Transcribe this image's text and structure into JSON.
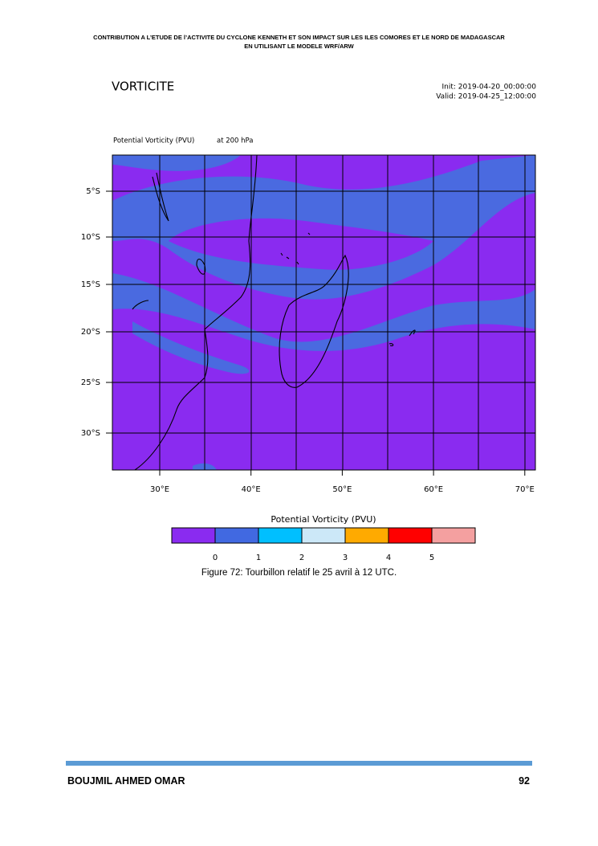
{
  "header": {
    "line1": "CONTRIBUTION A L’ETUDE DE l’ACTIVITE DU CYCLONE KENNETH ET SON IMPACT SUR LES ILES COMORES ET LE NORD DE MADAGASCAR",
    "line2": "EN UTILISANT LE MODELE WRF/ARW"
  },
  "figure": {
    "title": "VORTICITE",
    "init": "Init: 2019-04-20_00:00:00",
    "valid": "Valid: 2019-04-25_12:00:00",
    "field": "Potential Vorticity   (PVU)",
    "level": "at   200 hPa",
    "lat_labels": [
      "5°S",
      "10°S",
      "15°S",
      "20°S",
      "25°S",
      "30°S"
    ],
    "lon_labels": [
      "30°E",
      "40°E",
      "50°E",
      "60°E",
      "70°E"
    ],
    "colorbar": {
      "title": "Potential Vorticity  (PVU)",
      "labels": [
        0,
        1,
        2,
        3,
        4,
        5
      ],
      "colors": [
        "#8a2bf0",
        "#4169e1",
        "#00bfff",
        "#cce8f8",
        "#ffaa00",
        "#ff0000",
        "#f4a0a0"
      ]
    },
    "caption": "Figure 72: Tourbillon relatif le 25 avril à 12 UTC."
  },
  "footer": {
    "author": "BOUJMIL AHMED OMAR",
    "page": 92
  }
}
